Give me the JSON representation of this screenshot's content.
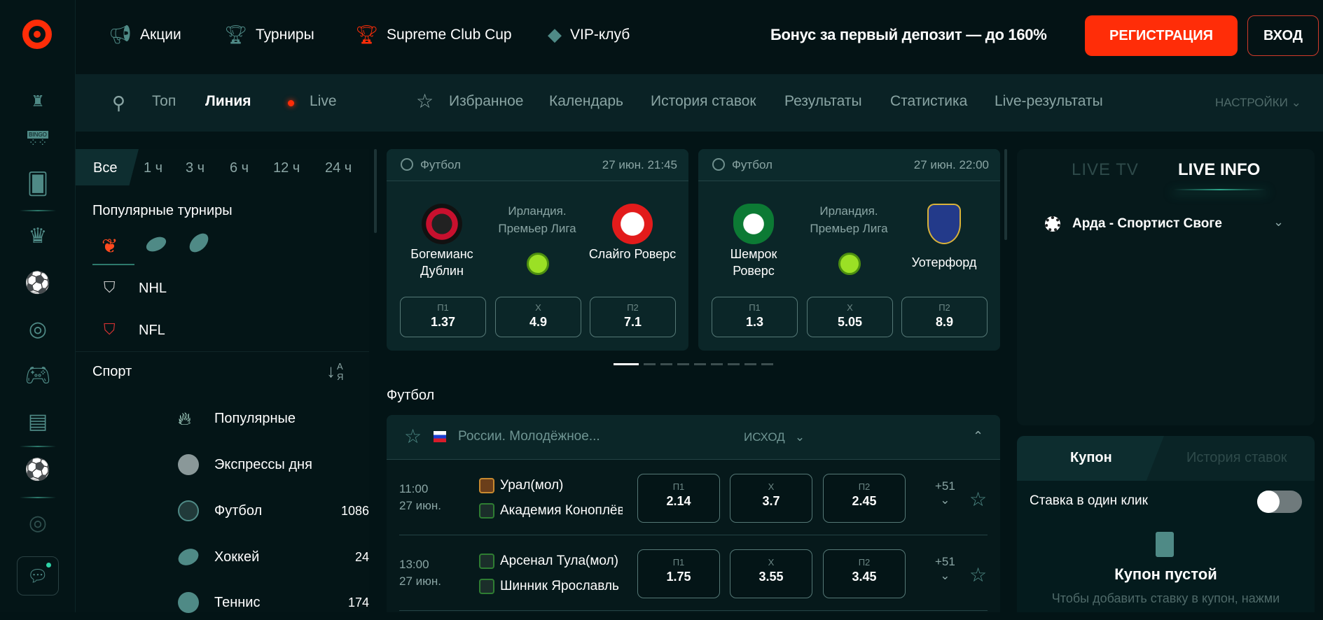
{
  "header": {
    "nav": [
      {
        "label": "Акции",
        "icon": "megaphone-icon"
      },
      {
        "label": "Турниры",
        "icon": "trophy-icon"
      },
      {
        "label": "Supreme Club Cup",
        "icon": "cup-ball-icon"
      },
      {
        "label": "VIP-клуб",
        "icon": "diamond-icon"
      }
    ],
    "bonus": "Бонус за первый депозит — до 160%",
    "register": "РЕГИСТРАЦИЯ",
    "login": "ВХОД",
    "accent": "#ff2d08"
  },
  "subnav": {
    "top": "Топ",
    "line": "Линия",
    "live": "Live",
    "links": [
      "Избранное",
      "Календарь",
      "История ставок",
      "Результаты",
      "Статистика",
      "Live-результаты"
    ],
    "settings": "НАСТРОЙКИ"
  },
  "rail": {
    "bingo": "BINGO"
  },
  "left": {
    "filters": [
      "Все",
      "1 ч",
      "3 ч",
      "6 ч",
      "12 ч",
      "24 ч"
    ],
    "popular_title": "Популярные турниры",
    "tournaments": [
      "NHL",
      "NFL"
    ],
    "sport_title": "Спорт",
    "sort": {
      "a": "А",
      "z": "Я"
    },
    "sports": [
      {
        "label": "Популярные",
        "count": ""
      },
      {
        "label": "Экспрессы дня",
        "count": ""
      },
      {
        "label": "Футбол",
        "count": "1086"
      },
      {
        "label": "Хоккей",
        "count": "24"
      },
      {
        "label": "Теннис",
        "count": "174"
      }
    ]
  },
  "cards": [
    {
      "sport": "Футбол",
      "date": "27 июн. 21:45",
      "league": "Ирландия. Премьер Лига",
      "home": "Богемианс Дублин",
      "away": "Слайго Роверс",
      "odds": [
        {
          "k": "П1",
          "v": "1.37"
        },
        {
          "k": "X",
          "v": "4.9"
        },
        {
          "k": "П2",
          "v": "7.1"
        }
      ]
    },
    {
      "sport": "Футбол",
      "date": "27 июн. 22:00",
      "league": "Ирландия. Премьер Лига",
      "home": "Шемрок Роверс",
      "away": "Уотерфорд",
      "odds": [
        {
          "k": "П1",
          "v": "1.3"
        },
        {
          "k": "X",
          "v": "5.05"
        },
        {
          "k": "П2",
          "v": "8.9"
        }
      ]
    }
  ],
  "section_title": "Футбол",
  "league": {
    "name": "России. Молодёжное...",
    "market": "ИСХОД",
    "matches": [
      {
        "time": "11:00",
        "date": "27 июн.",
        "home": "Урал(мол)",
        "away": "Академия Коноплёва",
        "odds": [
          {
            "k": "П1",
            "v": "2.14"
          },
          {
            "k": "X",
            "v": "3.7"
          },
          {
            "k": "П2",
            "v": "2.45"
          }
        ],
        "more": "+51"
      },
      {
        "time": "13:00",
        "date": "27 июн.",
        "home": "Арсенал Тула(мол)",
        "away": "Шинник Ярославль",
        "odds": [
          {
            "k": "П1",
            "v": "1.75"
          },
          {
            "k": "X",
            "v": "3.55"
          },
          {
            "k": "П2",
            "v": "3.45"
          }
        ],
        "more": "+51"
      }
    ]
  },
  "right": {
    "tabs": [
      "LIVE TV",
      "LIVE INFO"
    ],
    "match": "Арда - Спортист Своге",
    "coupon_tabs": [
      "Купон",
      "История ставок"
    ],
    "one_click": "Ставка в один клик",
    "one_click_on": false,
    "empty_title": "Купон пустой",
    "empty_text": "Чтобы добавить ставку в купон, нажми"
  }
}
